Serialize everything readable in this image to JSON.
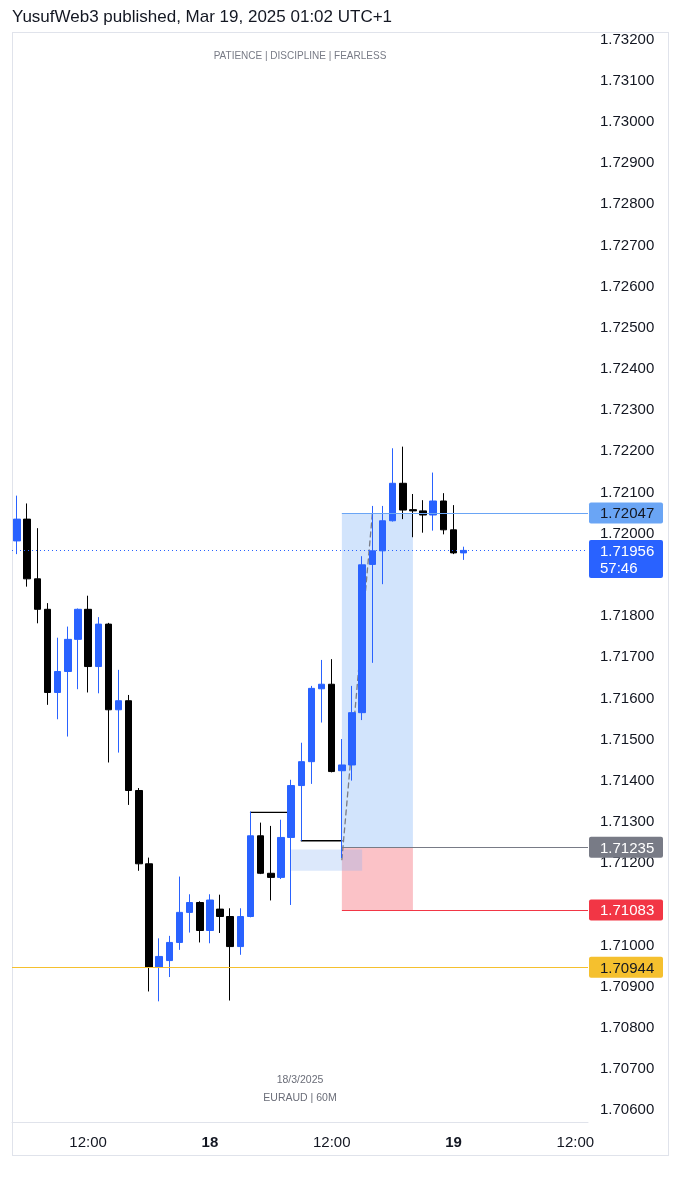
{
  "chart_data": {
    "type": "candlestick",
    "title": "YusufWeb3 published, Mar 19, 2025 01:02 UTC+1",
    "subtitle": "PATIENCE | DISCIPLINE | FEARLESS",
    "annotations": [
      "18/3/2025",
      "EURAUD | 60M"
    ],
    "xlim": [
      "2025-03-17T04:30",
      "2025-03-19T13:15"
    ],
    "xticks": [
      {
        "value": "2025-03-17T12:00",
        "label": "12:00"
      },
      {
        "value": "2025-03-18T00:00",
        "label": "18"
      },
      {
        "value": "2025-03-18T12:00",
        "label": "12:00"
      },
      {
        "value": "2025-03-19T00:00",
        "label": "19"
      },
      {
        "value": "2025-03-19T12:00",
        "label": "12:00"
      }
    ],
    "ylim": [
      1.70568,
      1.7321
    ],
    "yticks": [
      {
        "value": 1.706,
        "label": "1.70600"
      },
      {
        "value": 1.707,
        "label": "1.70700"
      },
      {
        "value": 1.708,
        "label": "1.70800"
      },
      {
        "value": 1.709,
        "label": "1.70900"
      },
      {
        "value": 1.71,
        "label": "1.71000"
      },
      {
        "value": 1.712,
        "label": "1.71200"
      },
      {
        "value": 1.713,
        "label": "1.71300"
      },
      {
        "value": 1.714,
        "label": "1.71400"
      },
      {
        "value": 1.715,
        "label": "1.71500"
      },
      {
        "value": 1.716,
        "label": "1.71600"
      },
      {
        "value": 1.717,
        "label": "1.71700"
      },
      {
        "value": 1.718,
        "label": "1.71800"
      },
      {
        "value": 1.72,
        "label": "1.72000"
      },
      {
        "value": 1.721,
        "label": "1.72100"
      },
      {
        "value": 1.722,
        "label": "1.72200"
      },
      {
        "value": 1.723,
        "label": "1.72300"
      },
      {
        "value": 1.724,
        "label": "1.72400"
      },
      {
        "value": 1.725,
        "label": "1.72500"
      },
      {
        "value": 1.726,
        "label": "1.72600"
      },
      {
        "value": 1.727,
        "label": "1.72700"
      },
      {
        "value": 1.728,
        "label": "1.72800"
      },
      {
        "value": 1.729,
        "label": "1.72900"
      },
      {
        "value": 1.73,
        "label": "1.73000"
      },
      {
        "value": 1.731,
        "label": "1.73100"
      },
      {
        "value": 1.732,
        "label": "1.73200"
      }
    ],
    "ref_lines": [
      {
        "axis": "y",
        "value": 1.72047,
        "label": "1.72047",
        "color": "#6aa5f5",
        "line_style": "solid"
      },
      {
        "axis": "y",
        "value": 1.71956,
        "label": "1.71956\n57:46",
        "color": "#2962ff",
        "line_style": "dotted"
      },
      {
        "axis": "y",
        "value": 1.71235,
        "label": "1.71235",
        "color": "#787b86",
        "line_style": "solid"
      },
      {
        "axis": "y",
        "value": 1.71083,
        "label": "1.71083",
        "color": "#f23645",
        "line_style": "solid"
      },
      {
        "axis": "y",
        "value": 1.70944,
        "label": "1.70944",
        "color": "#f5c02e",
        "line_style": "solid"
      }
    ],
    "series": [
      {
        "x": [
          "2025-03-17T05:00",
          "2025-03-17T06:00",
          "2025-03-17T07:00",
          "2025-03-17T08:00",
          "2025-03-17T09:00",
          "2025-03-17T10:00",
          "2025-03-17T11:00",
          "2025-03-17T12:00",
          "2025-03-17T13:00",
          "2025-03-17T14:00",
          "2025-03-17T15:00",
          "2025-03-17T16:00",
          "2025-03-17T17:00",
          "2025-03-17T18:00",
          "2025-03-17T19:00",
          "2025-03-17T20:00",
          "2025-03-17T21:00",
          "2025-03-17T22:00",
          "2025-03-17T23:00",
          "2025-03-18T00:00",
          "2025-03-18T01:00",
          "2025-03-18T02:00",
          "2025-03-18T03:00",
          "2025-03-18T04:00",
          "2025-03-18T05:00",
          "2025-03-18T06:00",
          "2025-03-18T07:00",
          "2025-03-18T08:00",
          "2025-03-18T09:00",
          "2025-03-18T10:00",
          "2025-03-18T11:00",
          "2025-03-18T12:00",
          "2025-03-18T13:00",
          "2025-03-18T14:00",
          "2025-03-18T15:00",
          "2025-03-18T16:00",
          "2025-03-18T17:00",
          "2025-03-18T18:00",
          "2025-03-18T19:00",
          "2025-03-18T20:00",
          "2025-03-18T21:00",
          "2025-03-18T22:00",
          "2025-03-18T23:00",
          "2025-03-19T00:00",
          "2025-03-19T01:00"
        ],
        "ohlc": [
          [
            1.71979,
            1.72089,
            1.71947,
            1.72032
          ],
          [
            1.72032,
            1.7207,
            1.71868,
            1.71887
          ],
          [
            1.71887,
            1.7201,
            1.71779,
            1.71813
          ],
          [
            1.71813,
            1.71828,
            1.71581,
            1.71611
          ],
          [
            1.71611,
            1.71744,
            1.71546,
            1.71662
          ],
          [
            1.71662,
            1.71771,
            1.71504,
            1.7174
          ],
          [
            1.7174,
            1.71815,
            1.71619,
            1.71813
          ],
          [
            1.71813,
            1.71846,
            1.71611,
            1.71674
          ],
          [
            1.71674,
            1.71794,
            1.71609,
            1.71777
          ],
          [
            1.71777,
            1.7178,
            1.71441,
            1.71569
          ],
          [
            1.71569,
            1.71666,
            1.71465,
            1.71591
          ],
          [
            1.71591,
            1.71605,
            1.71338,
            1.71373
          ],
          [
            1.71373,
            1.71379,
            1.71178,
            1.71195
          ],
          [
            1.71195,
            1.7121,
            1.70885,
            1.70944
          ],
          [
            1.70944,
            1.71014,
            1.70861,
            1.7097
          ],
          [
            1.7096,
            1.7102,
            1.7092,
            1.71004
          ],
          [
            1.71004,
            1.71164,
            1.70986,
            1.71077
          ],
          [
            1.71077,
            1.71121,
            1.71028,
            1.71101
          ],
          [
            1.71101,
            1.71104,
            1.71004,
            1.71033
          ],
          [
            1.71033,
            1.71121,
            1.71002,
            1.71107
          ],
          [
            1.71085,
            1.7112,
            1.71027,
            1.71067
          ],
          [
            1.71067,
            1.71087,
            1.70863,
            1.70994
          ],
          [
            1.70994,
            1.71087,
            1.70974,
            1.71067
          ],
          [
            1.71067,
            1.71322,
            1.71065,
            1.71263
          ],
          [
            1.71263,
            1.71295,
            1.7117,
            1.71172
          ],
          [
            1.71172,
            1.71287,
            1.71106,
            1.71162
          ],
          [
            1.71162,
            1.71302,
            1.71158,
            1.71259
          ],
          [
            1.71259,
            1.71399,
            1.71095,
            1.71385
          ],
          [
            1.71385,
            1.71489,
            1.71251,
            1.71443
          ],
          [
            1.71443,
            1.71627,
            1.71389,
            1.71621
          ],
          [
            1.7162,
            1.7169,
            1.71538,
            1.71631
          ],
          [
            1.71631,
            1.71692,
            1.71417,
            1.71419
          ],
          [
            1.71421,
            1.71498,
            1.71209,
            1.71435
          ],
          [
            1.71435,
            1.71627,
            1.71397,
            1.71562
          ],
          [
            1.71562,
            1.71942,
            1.71544,
            1.71921
          ],
          [
            1.71922,
            1.72064,
            1.71683,
            1.71955
          ],
          [
            1.71955,
            1.72064,
            1.71874,
            1.72028
          ],
          [
            1.72028,
            1.72204,
            1.72026,
            1.72119
          ],
          [
            1.72119,
            1.72208,
            1.72032,
            1.72054
          ],
          [
            1.72055,
            1.72093,
            1.71988,
            1.72052
          ],
          [
            1.72052,
            1.72078,
            1.71999,
            1.72042
          ],
          [
            1.72042,
            1.72145,
            1.72004,
            1.72076
          ],
          [
            1.72076,
            1.72095,
            1.71995,
            1.72006
          ],
          [
            1.72006,
            1.72066,
            1.71947,
            1.7195
          ],
          [
            1.7195,
            1.71965,
            1.71933,
            1.71956
          ]
        ],
        "colors": [
          "#2962ff",
          "#000000",
          "#000000",
          "#000000",
          "#2962ff",
          "#2962ff",
          "#2962ff",
          "#000000",
          "#2962ff",
          "#000000",
          "#2962ff",
          "#000000",
          "#000000",
          "#000000",
          "#2962ff",
          "#2962ff",
          "#2962ff",
          "#2962ff",
          "#000000",
          "#2962ff",
          "#000000",
          "#000000",
          "#2962ff",
          "#2962ff",
          "#000000",
          "#000000",
          "#2962ff",
          "#2962ff",
          "#2962ff",
          "#2962ff",
          "#2962ff",
          "#000000",
          "#2962ff",
          "#2962ff",
          "#2962ff",
          "#2962ff",
          "#2962ff",
          "#2962ff",
          "#000000",
          "#000000",
          "#000000",
          "#2962ff",
          "#000000",
          "#000000",
          "#2962ff"
        ]
      },
      {
        "type": "line",
        "color": "#6aa5f5",
        "x": [
          "2025-03-18T13:00",
          "2025-03-18T20:00"
        ],
        "values": [
          null,
          null
        ],
        "lower": [
          1.71235,
          1.71235
        ],
        "upper": [
          1.72047,
          1.72047
        ]
      },
      {
        "type": "line",
        "color": "#f23645",
        "x": [
          "2025-03-18T13:00",
          "2025-03-18T20:00"
        ],
        "values": [
          null,
          null
        ],
        "lower": [
          1.71083,
          1.71083
        ],
        "upper": [
          1.71235,
          1.71235
        ]
      },
      {
        "type": "line",
        "color": "#8ab2f2",
        "x": [
          "2025-03-18T08:00",
          "2025-03-18T15:00"
        ],
        "values": [
          null,
          null
        ],
        "lower": [
          1.71178,
          1.71178
        ],
        "upper": [
          1.7123,
          1.7123
        ]
      },
      {
        "type": "line",
        "color": "#000000",
        "x": [
          "2025-03-18T04:00",
          "2025-03-18T07:40"
        ],
        "values": [
          1.7132,
          1.7132
        ]
      },
      {
        "type": "line",
        "color": "#000000",
        "x": [
          "2025-03-18T09:00",
          "2025-03-18T13:00"
        ],
        "values": [
          1.71251,
          1.71251
        ]
      },
      {
        "type": "line",
        "color": "#787b86",
        "line_style": "dashed",
        "x": [
          "2025-03-18T13:00",
          "2025-03-18T16:00"
        ],
        "values": [
          1.71205,
          1.72044
        ]
      }
    ]
  }
}
